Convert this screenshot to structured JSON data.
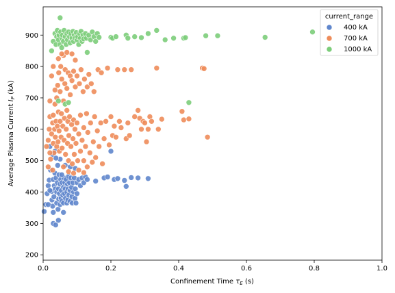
{
  "chart_data": {
    "type": "scatter",
    "xlabel_main": "Confinement Time ",
    "xlabel_sym": "τ",
    "xlabel_sub": "E",
    "xlabel_unit": " (s)",
    "ylabel_main": "Average Plasma Current ",
    "ylabel_sym": "I",
    "ylabel_sub": "P",
    "ylabel_unit": " (kA)",
    "xlim": [
      0,
      1.0
    ],
    "ylim": [
      183,
      990
    ],
    "xticks": [
      0.0,
      0.2,
      0.4,
      0.6,
      0.8,
      1.0
    ],
    "xtick_labels": [
      "0.0",
      "0.2",
      "0.4",
      "0.6",
      "0.8",
      "1.0"
    ],
    "yticks": [
      200,
      300,
      400,
      500,
      600,
      700,
      800,
      900
    ],
    "ytick_labels": [
      "200",
      "300",
      "400",
      "500",
      "600",
      "700",
      "800",
      "900"
    ],
    "grid": false,
    "legend": {
      "title": "current_range",
      "placement": "top-right",
      "entries": [
        "400 kA",
        "700 kA",
        "1000 kA"
      ]
    },
    "series": [
      {
        "name": "400 kA",
        "color": "#5f86cc",
        "points": [
          [
            0.003,
            338
          ],
          [
            0.008,
            360
          ],
          [
            0.012,
            395
          ],
          [
            0.015,
            420
          ],
          [
            0.018,
            438
          ],
          [
            0.02,
            545
          ],
          [
            0.022,
            470
          ],
          [
            0.025,
            402
          ],
          [
            0.026,
            375
          ],
          [
            0.028,
            355
          ],
          [
            0.03,
            300
          ],
          [
            0.03,
            440
          ],
          [
            0.032,
            385
          ],
          [
            0.033,
            420
          ],
          [
            0.035,
            460
          ],
          [
            0.036,
            410
          ],
          [
            0.037,
            295
          ],
          [
            0.038,
            445
          ],
          [
            0.04,
            365
          ],
          [
            0.04,
            400
          ],
          [
            0.042,
            430
          ],
          [
            0.043,
            485
          ],
          [
            0.044,
            345
          ],
          [
            0.045,
            410
          ],
          [
            0.046,
            378
          ],
          [
            0.047,
            455
          ],
          [
            0.048,
            395
          ],
          [
            0.05,
            425
          ],
          [
            0.05,
            360
          ],
          [
            0.052,
            440
          ],
          [
            0.053,
            380
          ],
          [
            0.054,
            405
          ],
          [
            0.055,
            370
          ],
          [
            0.056,
            430
          ],
          [
            0.058,
            390
          ],
          [
            0.06,
            415
          ],
          [
            0.06,
            365
          ],
          [
            0.062,
            445
          ],
          [
            0.063,
            395
          ],
          [
            0.064,
            430
          ],
          [
            0.065,
            410
          ],
          [
            0.066,
            380
          ],
          [
            0.068,
            440
          ],
          [
            0.07,
            400
          ],
          [
            0.07,
            365
          ],
          [
            0.072,
            425
          ],
          [
            0.073,
            375
          ],
          [
            0.074,
            410
          ],
          [
            0.075,
            450
          ],
          [
            0.076,
            390
          ],
          [
            0.078,
            430
          ],
          [
            0.08,
            405
          ],
          [
            0.08,
            370
          ],
          [
            0.082,
            445
          ],
          [
            0.084,
            415
          ],
          [
            0.085,
            385
          ],
          [
            0.086,
            365
          ],
          [
            0.088,
            430
          ],
          [
            0.09,
            400
          ],
          [
            0.092,
            445
          ],
          [
            0.094,
            380
          ],
          [
            0.095,
            410
          ],
          [
            0.097,
            365
          ],
          [
            0.1,
            430
          ],
          [
            0.1,
            395
          ],
          [
            0.105,
            440
          ],
          [
            0.11,
            420
          ],
          [
            0.115,
            445
          ],
          [
            0.12,
            430
          ],
          [
            0.125,
            448
          ],
          [
            0.13,
            440
          ],
          [
            0.028,
            520
          ],
          [
            0.035,
            530
          ],
          [
            0.05,
            505
          ],
          [
            0.03,
            335
          ],
          [
            0.06,
            335
          ],
          [
            0.045,
            310
          ],
          [
            0.038,
            508
          ],
          [
            0.065,
            485
          ],
          [
            0.08,
            480
          ],
          [
            0.095,
            475
          ],
          [
            0.155,
            435
          ],
          [
            0.18,
            445
          ],
          [
            0.19,
            448
          ],
          [
            0.2,
            530
          ],
          [
            0.21,
            440
          ],
          [
            0.22,
            443
          ],
          [
            0.24,
            437
          ],
          [
            0.245,
            418
          ],
          [
            0.26,
            446
          ],
          [
            0.28,
            445
          ],
          [
            0.31,
            443
          ],
          [
            0.015,
            360
          ],
          [
            0.02,
            405
          ],
          [
            0.055,
            455
          ]
        ]
      },
      {
        "name": "700 kA",
        "color": "#ee8c5a",
        "points": [
          [
            0.01,
            545
          ],
          [
            0.015,
            565
          ],
          [
            0.018,
            600
          ],
          [
            0.02,
            640
          ],
          [
            0.022,
            505
          ],
          [
            0.025,
            585
          ],
          [
            0.028,
            620
          ],
          [
            0.03,
            555
          ],
          [
            0.03,
            645
          ],
          [
            0.032,
            525
          ],
          [
            0.034,
            600
          ],
          [
            0.035,
            680
          ],
          [
            0.036,
            575
          ],
          [
            0.038,
            625
          ],
          [
            0.04,
            545
          ],
          [
            0.04,
            700
          ],
          [
            0.042,
            610
          ],
          [
            0.043,
            740
          ],
          [
            0.044,
            560
          ],
          [
            0.045,
            655
          ],
          [
            0.046,
            780
          ],
          [
            0.047,
            595
          ],
          [
            0.048,
            530
          ],
          [
            0.05,
            625
          ],
          [
            0.05,
            720
          ],
          [
            0.052,
            800
          ],
          [
            0.053,
            575
          ],
          [
            0.054,
            650
          ],
          [
            0.055,
            760
          ],
          [
            0.056,
            540
          ],
          [
            0.058,
            610
          ],
          [
            0.06,
            690
          ],
          [
            0.06,
            835
          ],
          [
            0.062,
            565
          ],
          [
            0.063,
            635
          ],
          [
            0.064,
            745
          ],
          [
            0.065,
            790
          ],
          [
            0.066,
            520
          ],
          [
            0.068,
            600
          ],
          [
            0.07,
            660
          ],
          [
            0.07,
            730
          ],
          [
            0.072,
            555
          ],
          [
            0.073,
            625
          ],
          [
            0.074,
            780
          ],
          [
            0.075,
            500
          ],
          [
            0.076,
            580
          ],
          [
            0.078,
            640
          ],
          [
            0.08,
            710
          ],
          [
            0.08,
            770
          ],
          [
            0.082,
            545
          ],
          [
            0.084,
            615
          ],
          [
            0.085,
            755
          ],
          [
            0.086,
            490
          ],
          [
            0.088,
            570
          ],
          [
            0.09,
            630
          ],
          [
            0.09,
            785
          ],
          [
            0.092,
            520
          ],
          [
            0.094,
            600
          ],
          [
            0.095,
            735
          ],
          [
            0.097,
            555
          ],
          [
            0.1,
            620
          ],
          [
            0.1,
            770
          ],
          [
            0.102,
            500
          ],
          [
            0.105,
            585
          ],
          [
            0.107,
            745
          ],
          [
            0.11,
            530
          ],
          [
            0.11,
            645
          ],
          [
            0.112,
            790
          ],
          [
            0.115,
            565
          ],
          [
            0.118,
            720
          ],
          [
            0.12,
            500
          ],
          [
            0.12,
            605
          ],
          [
            0.122,
            760
          ],
          [
            0.125,
            545
          ],
          [
            0.128,
            650
          ],
          [
            0.13,
            735
          ],
          [
            0.13,
            480
          ],
          [
            0.132,
            590
          ],
          [
            0.135,
            775
          ],
          [
            0.138,
            525
          ],
          [
            0.14,
            620
          ],
          [
            0.142,
            745
          ],
          [
            0.145,
            495
          ],
          [
            0.148,
            560
          ],
          [
            0.15,
            720
          ],
          [
            0.152,
            640
          ],
          [
            0.155,
            510
          ],
          [
            0.16,
            595
          ],
          [
            0.162,
            790
          ],
          [
            0.165,
            545
          ],
          [
            0.17,
            620
          ],
          [
            0.172,
            780
          ],
          [
            0.175,
            490
          ],
          [
            0.18,
            570
          ],
          [
            0.185,
            625
          ],
          [
            0.19,
            795
          ],
          [
            0.195,
            550
          ],
          [
            0.2,
            640
          ],
          [
            0.205,
            580
          ],
          [
            0.21,
            610
          ],
          [
            0.215,
            575
          ],
          [
            0.22,
            790
          ],
          [
            0.225,
            625
          ],
          [
            0.23,
            605
          ],
          [
            0.24,
            790
          ],
          [
            0.245,
            570
          ],
          [
            0.25,
            620
          ],
          [
            0.255,
            580
          ],
          [
            0.26,
            790
          ],
          [
            0.27,
            640
          ],
          [
            0.28,
            660
          ],
          [
            0.285,
            635
          ],
          [
            0.29,
            600
          ],
          [
            0.295,
            625
          ],
          [
            0.3,
            620
          ],
          [
            0.305,
            560
          ],
          [
            0.31,
            600
          ],
          [
            0.315,
            640
          ],
          [
            0.32,
            625
          ],
          [
            0.335,
            795
          ],
          [
            0.34,
            600
          ],
          [
            0.35,
            632
          ],
          [
            0.41,
            657
          ],
          [
            0.415,
            630
          ],
          [
            0.43,
            633
          ],
          [
            0.47,
            795
          ],
          [
            0.475,
            793
          ],
          [
            0.485,
            575
          ],
          [
            0.025,
            770
          ],
          [
            0.03,
            800
          ],
          [
            0.035,
            725
          ],
          [
            0.02,
            690
          ],
          [
            0.045,
            825
          ],
          [
            0.055,
            840
          ],
          [
            0.07,
            845
          ],
          [
            0.085,
            840
          ],
          [
            0.095,
            820
          ],
          [
            0.06,
            480
          ],
          [
            0.075,
            465
          ],
          [
            0.09,
            460
          ],
          [
            0.105,
            470
          ],
          [
            0.12,
            462
          ],
          [
            0.015,
            480
          ],
          [
            0.02,
            525
          ],
          [
            0.028,
            470
          ]
        ]
      },
      {
        "name": "1000 kA",
        "color": "#7ccd7a",
        "points": [
          [
            0.025,
            850
          ],
          [
            0.03,
            880
          ],
          [
            0.035,
            905
          ],
          [
            0.038,
            870
          ],
          [
            0.04,
            895
          ],
          [
            0.042,
            915
          ],
          [
            0.045,
            885
          ],
          [
            0.047,
            900
          ],
          [
            0.05,
            955
          ],
          [
            0.05,
            870
          ],
          [
            0.052,
            910
          ],
          [
            0.055,
            890
          ],
          [
            0.057,
            900
          ],
          [
            0.06,
            880
          ],
          [
            0.062,
            915
          ],
          [
            0.065,
            895
          ],
          [
            0.068,
            870
          ],
          [
            0.07,
            905
          ],
          [
            0.072,
            885
          ],
          [
            0.075,
            910
          ],
          [
            0.078,
            895
          ],
          [
            0.08,
            875
          ],
          [
            0.082,
            905
          ],
          [
            0.085,
            890
          ],
          [
            0.088,
            912
          ],
          [
            0.09,
            880
          ],
          [
            0.092,
            900
          ],
          [
            0.095,
            890
          ],
          [
            0.098,
            908
          ],
          [
            0.1,
            885
          ],
          [
            0.102,
            895
          ],
          [
            0.105,
            870
          ],
          [
            0.108,
            905
          ],
          [
            0.11,
            890
          ],
          [
            0.112,
            912
          ],
          [
            0.115,
            880
          ],
          [
            0.118,
            900
          ],
          [
            0.12,
            888
          ],
          [
            0.125,
            905
          ],
          [
            0.128,
            890
          ],
          [
            0.13,
            845
          ],
          [
            0.135,
            900
          ],
          [
            0.14,
            885
          ],
          [
            0.145,
            910
          ],
          [
            0.15,
            895
          ],
          [
            0.155,
            880
          ],
          [
            0.16,
            905
          ],
          [
            0.165,
            893
          ],
          [
            0.2,
            893
          ],
          [
            0.205,
            890
          ],
          [
            0.215,
            895
          ],
          [
            0.245,
            900
          ],
          [
            0.25,
            890
          ],
          [
            0.27,
            895
          ],
          [
            0.29,
            892
          ],
          [
            0.31,
            905
          ],
          [
            0.335,
            915
          ],
          [
            0.36,
            885
          ],
          [
            0.385,
            890
          ],
          [
            0.415,
            890
          ],
          [
            0.42,
            892
          ],
          [
            0.43,
            685
          ],
          [
            0.48,
            898
          ],
          [
            0.515,
            898
          ],
          [
            0.655,
            893
          ],
          [
            0.795,
            910
          ],
          [
            0.065,
            680
          ],
          [
            0.075,
            685
          ],
          [
            0.045,
            690
          ],
          [
            0.055,
            860
          ]
        ]
      }
    ]
  }
}
